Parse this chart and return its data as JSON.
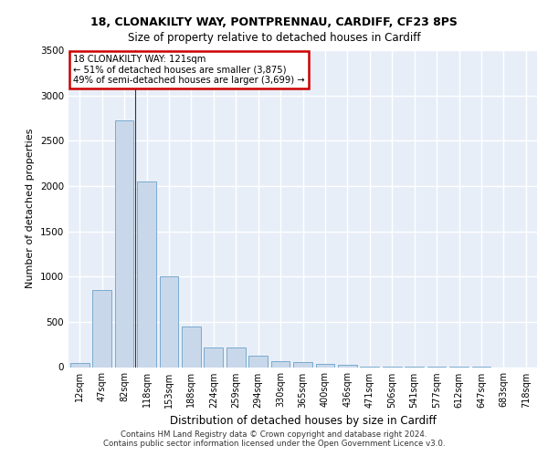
{
  "title_line1": "18, CLONAKILTY WAY, PONTPRENNAU, CARDIFF, CF23 8PS",
  "title_line2": "Size of property relative to detached houses in Cardiff",
  "xlabel": "Distribution of detached houses by size in Cardiff",
  "ylabel": "Number of detached properties",
  "categories": [
    "12sqm",
    "47sqm",
    "82sqm",
    "118sqm",
    "153sqm",
    "188sqm",
    "224sqm",
    "259sqm",
    "294sqm",
    "330sqm",
    "365sqm",
    "400sqm",
    "436sqm",
    "471sqm",
    "506sqm",
    "541sqm",
    "577sqm",
    "612sqm",
    "647sqm",
    "683sqm",
    "718sqm"
  ],
  "values": [
    50,
    850,
    2725,
    2050,
    1000,
    450,
    220,
    220,
    130,
    65,
    55,
    35,
    28,
    10,
    5,
    3,
    2,
    1,
    1,
    0,
    0
  ],
  "bar_color": "#c8d8ea",
  "bar_edge_color": "#7aaace",
  "vline_x": 2.5,
  "annotation_text": "18 CLONAKILTY WAY: 121sqm\n← 51% of detached houses are smaller (3,875)\n49% of semi-detached houses are larger (3,699) →",
  "annotation_box_color": "#ffffff",
  "annotation_box_edge": "#cc0000",
  "ylim": [
    0,
    3500
  ],
  "yticks": [
    0,
    500,
    1000,
    1500,
    2000,
    2500,
    3000,
    3500
  ],
  "bg_color": "#e8eef8",
  "grid_color": "#ffffff",
  "footer_line1": "Contains HM Land Registry data © Crown copyright and database right 2024.",
  "footer_line2": "Contains public sector information licensed under the Open Government Licence v3.0."
}
